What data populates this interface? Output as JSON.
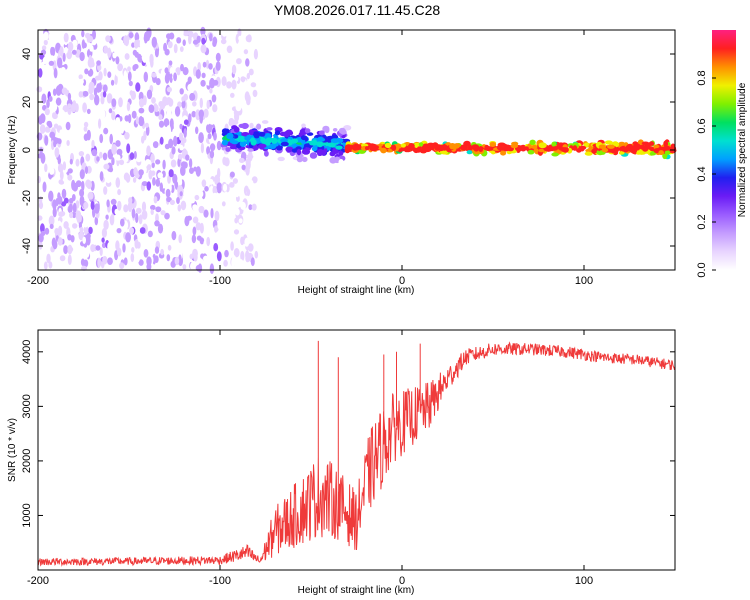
{
  "title": "YM08.2026.017.11.45.C28",
  "chart_data": [
    {
      "type": "heatmap",
      "xlabel": "Height of straight line (km)",
      "ylabel": "Frequency (Hz)",
      "xlim": [
        -200,
        150
      ],
      "ylim": [
        -50,
        50
      ],
      "xticks": [
        -200,
        -100,
        0,
        100
      ],
      "yticks": [
        40,
        20,
        0,
        -20,
        -40
      ],
      "colorbar": {
        "label": "Normalized spectral amplitude",
        "range": [
          0,
          1
        ],
        "ticks": [
          "0.0",
          "0.2",
          "0.4",
          "0.6",
          "0.8"
        ],
        "tick_values": [
          0,
          0.2,
          0.4,
          0.6,
          0.8
        ],
        "colors": [
          "#ffffff",
          "#e8d4ff",
          "#c49cff",
          "#9a5cff",
          "#6a1cf5",
          "#2020f0",
          "#00a0ff",
          "#00e0d0",
          "#00e060",
          "#80f000",
          "#f0f000",
          "#ff9000",
          "#ff2020",
          "#ff2080"
        ]
      },
      "regions": [
        {
          "name": "noise",
          "x": [
            -200,
            -100
          ],
          "freq_spread": 50,
          "amplitude": [
            0.0,
            0.2
          ]
        },
        {
          "name": "noise-sparse",
          "x": [
            -98,
            -80
          ],
          "freq_spread": 50,
          "amplitude": [
            0.0,
            0.12
          ]
        },
        {
          "name": "onset",
          "x": [
            -98,
            -30
          ],
          "freq_center": [
            5,
            2
          ],
          "freq_spread": 8,
          "amplitude": [
            0.2,
            0.6
          ]
        },
        {
          "name": "band",
          "x": [
            -30,
            150
          ],
          "freq_center": [
            1,
            0.5
          ],
          "freq_spread": 3,
          "amplitude": [
            0.5,
            0.95
          ]
        }
      ]
    },
    {
      "type": "line",
      "xlabel": "Height of straight line (km)",
      "ylabel": "SNR (10 * v/v)",
      "xlim": [
        -200,
        150
      ],
      "ylim": [
        0,
        4400
      ],
      "xticks": [
        -200,
        -100,
        0,
        100
      ],
      "yticks": [
        1000,
        2000,
        3000,
        4000
      ],
      "color": "#ef3a3a",
      "series": [
        {
          "name": "SNR",
          "x": [
            -200,
            -150,
            -100,
            -85,
            -78,
            -70,
            -55,
            -45,
            -35,
            -25,
            -19,
            -15,
            -5,
            5,
            15,
            25,
            35,
            50,
            70,
            90,
            110,
            130,
            150
          ],
          "mean": [
            150,
            160,
            180,
            320,
            160,
            700,
            1100,
            1400,
            1200,
            900,
            1700,
            2000,
            2600,
            2800,
            3000,
            3500,
            3900,
            4050,
            4050,
            4000,
            3900,
            3850,
            3750
          ],
          "noise": [
            70,
            70,
            80,
            150,
            70,
            450,
            650,
            800,
            650,
            550,
            700,
            800,
            650,
            550,
            450,
            250,
            150,
            120,
            110,
            110,
            100,
            100,
            100
          ],
          "peaks": [
            {
              "x": -46,
              "y": 4200
            },
            {
              "x": -35,
              "y": 3900
            },
            {
              "x": -10,
              "y": 3950
            },
            {
              "x": -3,
              "y": 4000
            },
            {
              "x": 10,
              "y": 4150
            }
          ]
        }
      ]
    }
  ]
}
